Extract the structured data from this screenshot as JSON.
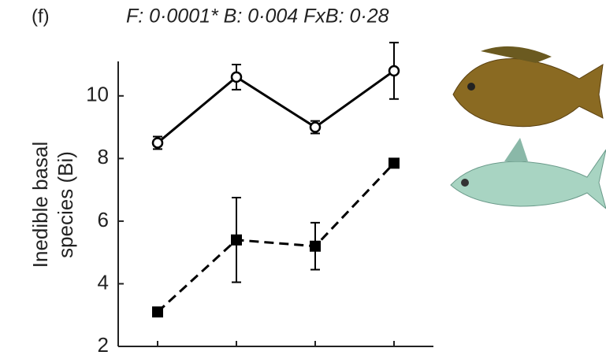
{
  "chart_data": {
    "type": "line",
    "panel_label": "(f)",
    "title": "F: 0·0001*   B: 0·004   FxB: 0·28",
    "y_label_lines": [
      "Inedible basal",
      "species (Bi)"
    ],
    "categories": [
      null,
      null,
      null,
      null
    ],
    "series": [
      {
        "color": "#000000",
        "marker": "open-circle",
        "line_style": "solid",
        "values": [
          8.5,
          10.6,
          9.0,
          10.8
        ],
        "errors": [
          0.2,
          0.4,
          0.2,
          0.9
        ]
      },
      {
        "color": "#000000",
        "marker": "filled-square",
        "line_style": "dashed",
        "values": [
          3.1,
          5.4,
          5.2,
          7.85
        ],
        "errors": [
          0,
          1.35,
          0.75,
          0.05
        ]
      }
    ],
    "ylim": [
      2,
      11
    ],
    "yticks": [
      2,
      4,
      6,
      8,
      10
    ]
  }
}
